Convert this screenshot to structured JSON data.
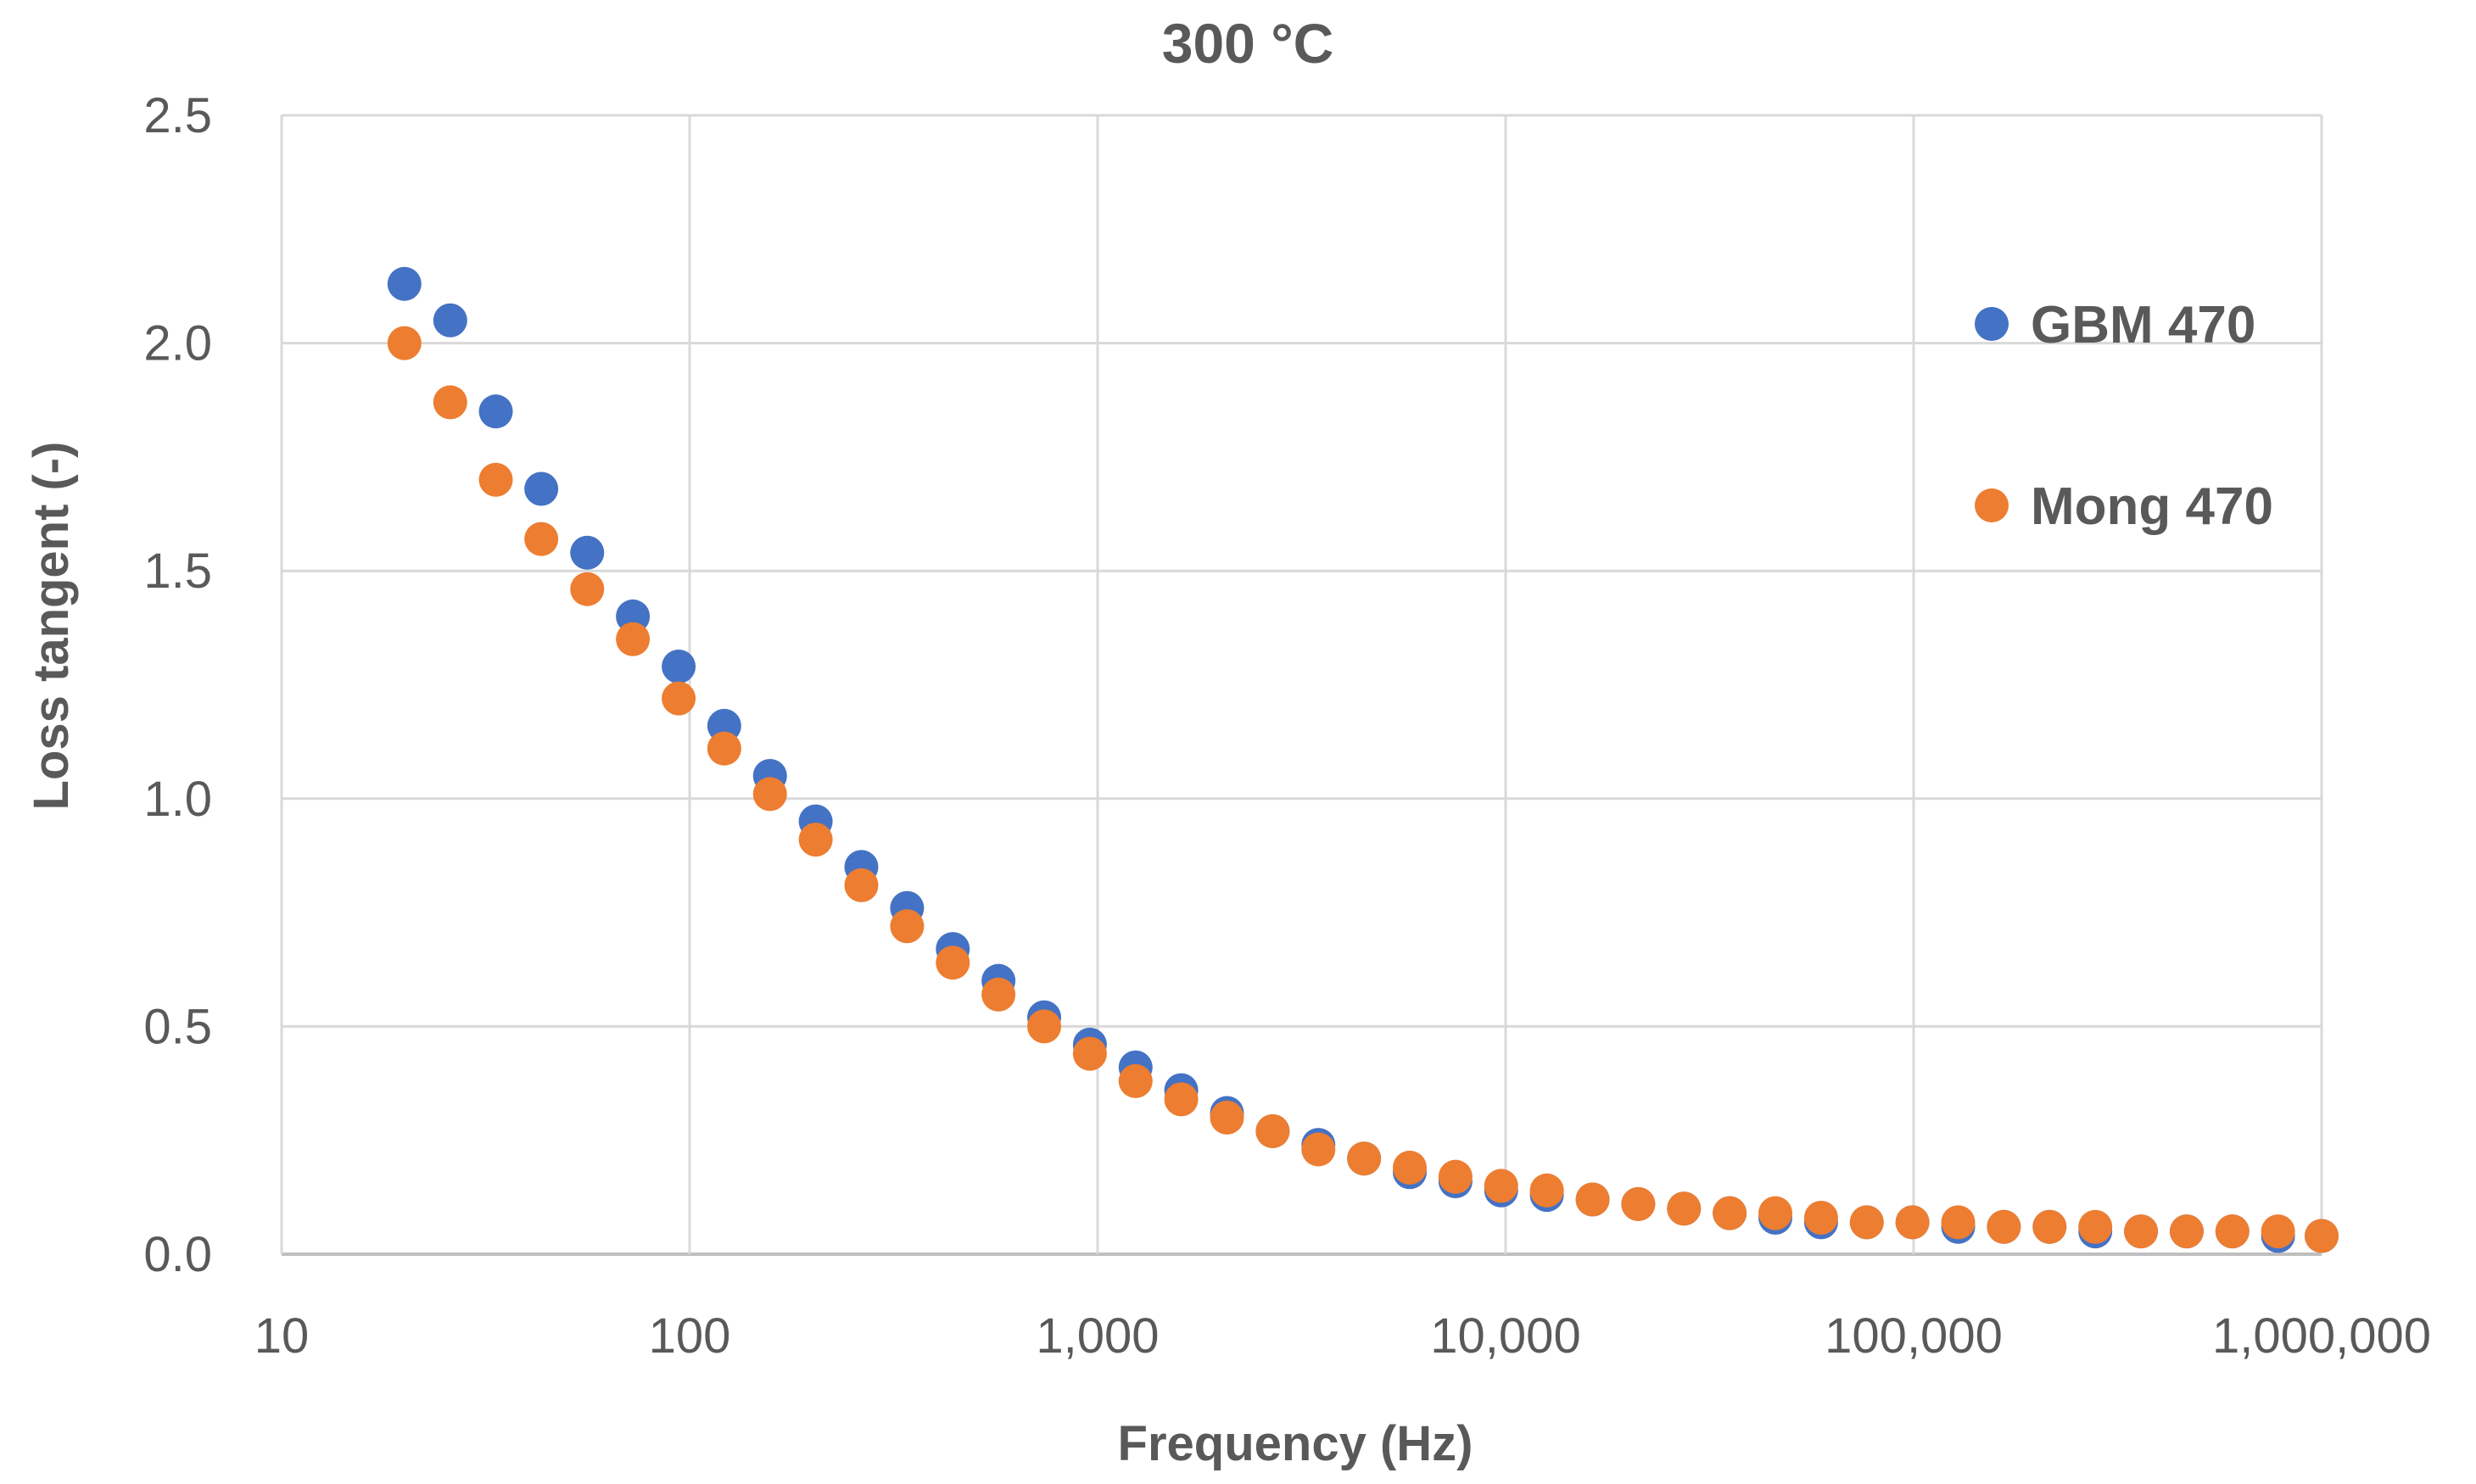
{
  "chart_data": {
    "type": "scatter",
    "title": "300 °C",
    "xlabel": "Frequency (Hz)",
    "ylabel": "Loss tangent (-)",
    "xscale": "log",
    "xlim": [
      10,
      1000000
    ],
    "ylim": [
      0,
      2.5
    ],
    "xticks": [
      10,
      100,
      1000,
      10000,
      100000,
      1000000
    ],
    "xtick_labels": [
      "10",
      "100",
      "1,000",
      "10,000",
      "100,000",
      "1,000,000"
    ],
    "yticks": [
      0,
      0.5,
      1.0,
      1.5,
      2.0,
      2.5
    ],
    "ytick_labels": [
      "0.0",
      "0.5",
      "1.0",
      "1.5",
      "2.0",
      "2.5"
    ],
    "grid": true,
    "legend_position": "right",
    "x": [
      20,
      25.9,
      33.5,
      43.3,
      56.1,
      72.6,
      94,
      121.6,
      157.4,
      203.7,
      263.6,
      341.2,
      441.6,
      571.5,
      739.7,
      957.3,
      1239,
      1603,
      2075,
      2686,
      3476,
      4499,
      5822,
      7535,
      9752,
      12620,
      16340,
      21140,
      27360,
      35410,
      45830,
      59320,
      76770,
      99350,
      128600,
      166400,
      215400,
      278800,
      360800,
      467000,
      604300,
      782100,
      1000000
    ],
    "series": [
      {
        "name": "GBM 470",
        "color": "#4472C4",
        "values": [
          2.13,
          2.05,
          1.85,
          1.68,
          1.54,
          1.4,
          1.29,
          1.16,
          1.05,
          0.95,
          0.85,
          0.76,
          0.67,
          0.6,
          0.52,
          0.46,
          0.41,
          0.36,
          0.31,
          0.27,
          0.24,
          0.21,
          0.18,
          0.16,
          0.14,
          0.13,
          0.12,
          0.11,
          0.1,
          0.09,
          0.08,
          0.07,
          0.07,
          0.07,
          0.06,
          0.06,
          0.06,
          0.05,
          0.05,
          0.05,
          0.05,
          0.04,
          0.04
        ]
      },
      {
        "name": "Mong 470",
        "color": "#ED7D31",
        "values": [
          2.0,
          1.87,
          1.7,
          1.57,
          1.46,
          1.35,
          1.22,
          1.11,
          1.01,
          0.91,
          0.81,
          0.72,
          0.64,
          0.57,
          0.5,
          0.44,
          0.38,
          0.34,
          0.3,
          0.27,
          0.23,
          0.21,
          0.19,
          0.17,
          0.15,
          0.14,
          0.12,
          0.11,
          0.1,
          0.09,
          0.09,
          0.08,
          0.07,
          0.07,
          0.07,
          0.06,
          0.06,
          0.06,
          0.05,
          0.05,
          0.05,
          0.05,
          0.04
        ]
      }
    ]
  }
}
